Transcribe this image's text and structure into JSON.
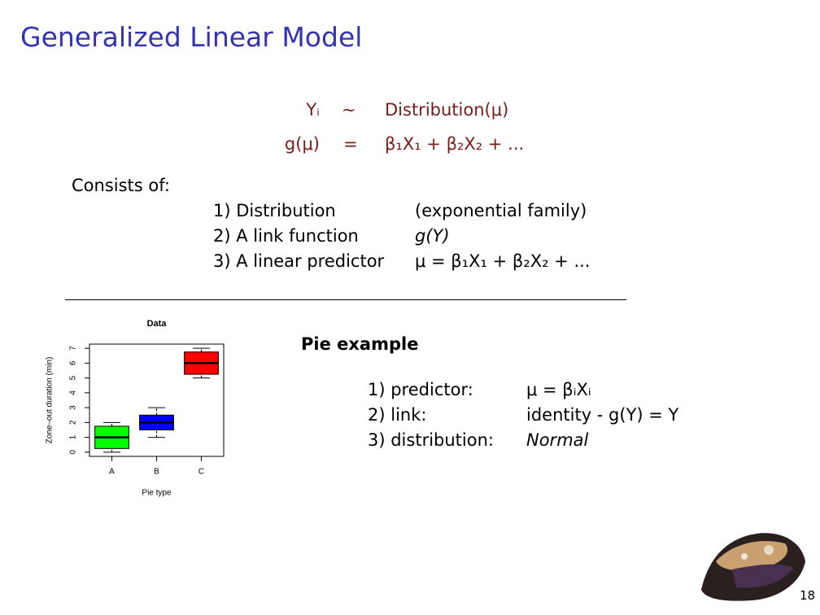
{
  "header": {
    "title": "Generalized Linear Model"
  },
  "equations": [
    {
      "lhs": "Yᵢ",
      "rel": "∼",
      "rhs": "Distribution(μ)"
    },
    {
      "lhs": "g(μ)",
      "rel": "=",
      "rhs": "β₁X₁ + β₂X₂ + ..."
    }
  ],
  "consists": {
    "label": "Consists of:",
    "items": [
      [
        "1) Distribution",
        "(exponential family)"
      ],
      [
        "2) A link function",
        "g(Y)"
      ],
      [
        "3) A linear predictor",
        "μ = β₁X₁ + β₂X₂ + ..."
      ]
    ]
  },
  "example": {
    "title": "Pie example",
    "items": [
      [
        "1) predictor:",
        "μ = βᵢXᵢ"
      ],
      [
        "2) link:",
        "identity - g(Y) = Y"
      ],
      [
        "3) distribution:",
        "Normal"
      ]
    ]
  },
  "chart_data": {
    "type": "box",
    "title": "Data",
    "x_label": "Pie type",
    "y_label": "Zone–out duration (min)",
    "categories": [
      "A",
      "B",
      "C"
    ],
    "colors": [
      "#00ff00",
      "#0000ff",
      "#ff0000"
    ],
    "whisker_low": [
      0,
      1,
      5
    ],
    "q1": [
      0.25,
      1.5,
      5.25
    ],
    "median": [
      1,
      2,
      6
    ],
    "q3": [
      1.75,
      2.5,
      6.75
    ],
    "whisker_high": [
      2,
      3,
      7
    ],
    "ylim": [
      -0.28,
      7.28
    ],
    "yticks": [
      0,
      1,
      2,
      3,
      4,
      5,
      6,
      7
    ]
  },
  "page_number": 18
}
